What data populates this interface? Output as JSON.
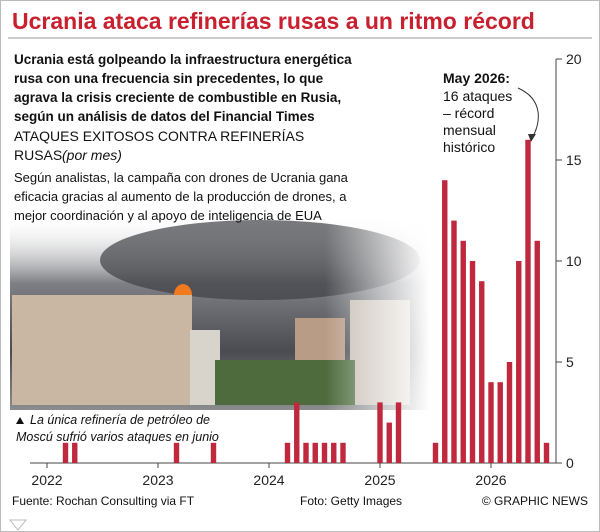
{
  "chart_data": {
    "type": "bar",
    "title": "Ucrania ataca refinerías rusas a un ritmo récord",
    "subtitle_lines": [
      "Ucrania está golpeando la infraestructura energética",
      "rusa con una frecuencia sin precedentes, lo que",
      "agrava la crisis creciente de combustible en Rusia,",
      "según un análisis de datos del Financial Times"
    ],
    "heading_lines": [
      "ATAQUES EXITOSOS CONTRA REFINERÍAS",
      "RUSAS"
    ],
    "heading_unit": "(por mes)",
    "description_lines": [
      "Según analistas, la campaña con drones de Ucrania gana",
      "eficacia gracias al aumento de la producción de drones, a",
      "mejor coordinación y al apoyo de inteligencia de EUA"
    ],
    "annotation": {
      "title": "May 2026:",
      "lines": [
        "16 ataques",
        "– récord",
        "mensual",
        "histórico"
      ]
    },
    "note_lines": [
      "La única refinería de petróleo de",
      "Moscú sufrió varios ataques en junio"
    ],
    "source": "Fuente: Rochan Consulting via FT",
    "photo_credit": "Foto: Getty Images",
    "credit": "© GRAPHIC NEWS",
    "categories": [
      "2022",
      null,
      null,
      null,
      null,
      null,
      null,
      null,
      null,
      null,
      null,
      null,
      "2023",
      null,
      null,
      null,
      null,
      null,
      null,
      null,
      null,
      null,
      null,
      null,
      "2024",
      null,
      null,
      null,
      null,
      null,
      null,
      null,
      null,
      null,
      null,
      null,
      "2025",
      null,
      null,
      null,
      null,
      null,
      null,
      null,
      null,
      null,
      null,
      null,
      "2026",
      null,
      null,
      null,
      null,
      null,
      null
    ],
    "values": [
      0,
      0,
      1,
      1,
      0,
      0,
      0,
      0,
      0,
      0,
      0,
      0,
      0,
      0,
      1,
      0,
      0,
      0,
      1,
      0,
      0,
      0,
      0,
      0,
      0,
      0,
      1,
      3,
      1,
      1,
      1,
      1,
      1,
      0,
      0,
      0,
      3,
      2,
      3,
      0,
      0,
      0,
      1,
      14,
      12,
      11,
      10,
      9,
      4,
      4,
      5,
      10,
      16,
      11,
      1
    ],
    "color": "#c0283d",
    "ylim": [
      0,
      20
    ],
    "yticks": [
      0,
      5,
      10,
      15,
      20
    ],
    "grid": false
  }
}
